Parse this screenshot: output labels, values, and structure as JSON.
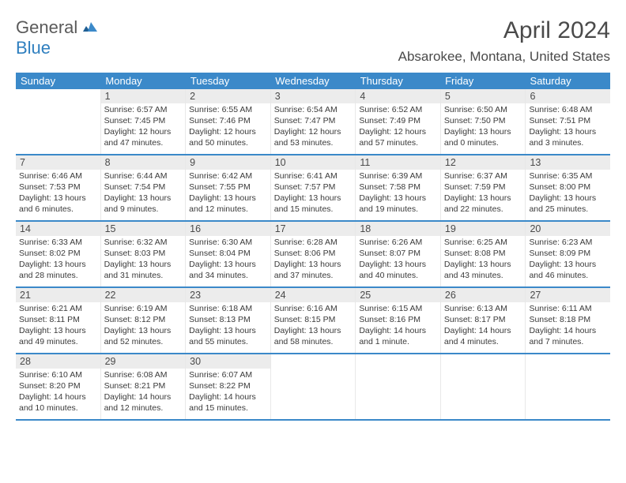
{
  "logo": {
    "textGeneral": "General",
    "textBlue": "Blue"
  },
  "title": "April 2024",
  "location": "Absarokee, Montana, United States",
  "colors": {
    "headerBg": "#3b89c9",
    "headerText": "#ffffff",
    "daynumBg": "#ececec",
    "weekBorder": "#3b89c9",
    "bodyText": "#3a3a3a"
  },
  "dayNames": [
    "Sunday",
    "Monday",
    "Tuesday",
    "Wednesday",
    "Thursday",
    "Friday",
    "Saturday"
  ],
  "weeks": [
    [
      {
        "n": "",
        "sr": "",
        "ss": "",
        "dl": ""
      },
      {
        "n": "1",
        "sr": "Sunrise: 6:57 AM",
        "ss": "Sunset: 7:45 PM",
        "dl": "Daylight: 12 hours and 47 minutes."
      },
      {
        "n": "2",
        "sr": "Sunrise: 6:55 AM",
        "ss": "Sunset: 7:46 PM",
        "dl": "Daylight: 12 hours and 50 minutes."
      },
      {
        "n": "3",
        "sr": "Sunrise: 6:54 AM",
        "ss": "Sunset: 7:47 PM",
        "dl": "Daylight: 12 hours and 53 minutes."
      },
      {
        "n": "4",
        "sr": "Sunrise: 6:52 AM",
        "ss": "Sunset: 7:49 PM",
        "dl": "Daylight: 12 hours and 57 minutes."
      },
      {
        "n": "5",
        "sr": "Sunrise: 6:50 AM",
        "ss": "Sunset: 7:50 PM",
        "dl": "Daylight: 13 hours and 0 minutes."
      },
      {
        "n": "6",
        "sr": "Sunrise: 6:48 AM",
        "ss": "Sunset: 7:51 PM",
        "dl": "Daylight: 13 hours and 3 minutes."
      }
    ],
    [
      {
        "n": "7",
        "sr": "Sunrise: 6:46 AM",
        "ss": "Sunset: 7:53 PM",
        "dl": "Daylight: 13 hours and 6 minutes."
      },
      {
        "n": "8",
        "sr": "Sunrise: 6:44 AM",
        "ss": "Sunset: 7:54 PM",
        "dl": "Daylight: 13 hours and 9 minutes."
      },
      {
        "n": "9",
        "sr": "Sunrise: 6:42 AM",
        "ss": "Sunset: 7:55 PM",
        "dl": "Daylight: 13 hours and 12 minutes."
      },
      {
        "n": "10",
        "sr": "Sunrise: 6:41 AM",
        "ss": "Sunset: 7:57 PM",
        "dl": "Daylight: 13 hours and 15 minutes."
      },
      {
        "n": "11",
        "sr": "Sunrise: 6:39 AM",
        "ss": "Sunset: 7:58 PM",
        "dl": "Daylight: 13 hours and 19 minutes."
      },
      {
        "n": "12",
        "sr": "Sunrise: 6:37 AM",
        "ss": "Sunset: 7:59 PM",
        "dl": "Daylight: 13 hours and 22 minutes."
      },
      {
        "n": "13",
        "sr": "Sunrise: 6:35 AM",
        "ss": "Sunset: 8:00 PM",
        "dl": "Daylight: 13 hours and 25 minutes."
      }
    ],
    [
      {
        "n": "14",
        "sr": "Sunrise: 6:33 AM",
        "ss": "Sunset: 8:02 PM",
        "dl": "Daylight: 13 hours and 28 minutes."
      },
      {
        "n": "15",
        "sr": "Sunrise: 6:32 AM",
        "ss": "Sunset: 8:03 PM",
        "dl": "Daylight: 13 hours and 31 minutes."
      },
      {
        "n": "16",
        "sr": "Sunrise: 6:30 AM",
        "ss": "Sunset: 8:04 PM",
        "dl": "Daylight: 13 hours and 34 minutes."
      },
      {
        "n": "17",
        "sr": "Sunrise: 6:28 AM",
        "ss": "Sunset: 8:06 PM",
        "dl": "Daylight: 13 hours and 37 minutes."
      },
      {
        "n": "18",
        "sr": "Sunrise: 6:26 AM",
        "ss": "Sunset: 8:07 PM",
        "dl": "Daylight: 13 hours and 40 minutes."
      },
      {
        "n": "19",
        "sr": "Sunrise: 6:25 AM",
        "ss": "Sunset: 8:08 PM",
        "dl": "Daylight: 13 hours and 43 minutes."
      },
      {
        "n": "20",
        "sr": "Sunrise: 6:23 AM",
        "ss": "Sunset: 8:09 PM",
        "dl": "Daylight: 13 hours and 46 minutes."
      }
    ],
    [
      {
        "n": "21",
        "sr": "Sunrise: 6:21 AM",
        "ss": "Sunset: 8:11 PM",
        "dl": "Daylight: 13 hours and 49 minutes."
      },
      {
        "n": "22",
        "sr": "Sunrise: 6:19 AM",
        "ss": "Sunset: 8:12 PM",
        "dl": "Daylight: 13 hours and 52 minutes."
      },
      {
        "n": "23",
        "sr": "Sunrise: 6:18 AM",
        "ss": "Sunset: 8:13 PM",
        "dl": "Daylight: 13 hours and 55 minutes."
      },
      {
        "n": "24",
        "sr": "Sunrise: 6:16 AM",
        "ss": "Sunset: 8:15 PM",
        "dl": "Daylight: 13 hours and 58 minutes."
      },
      {
        "n": "25",
        "sr": "Sunrise: 6:15 AM",
        "ss": "Sunset: 8:16 PM",
        "dl": "Daylight: 14 hours and 1 minute."
      },
      {
        "n": "26",
        "sr": "Sunrise: 6:13 AM",
        "ss": "Sunset: 8:17 PM",
        "dl": "Daylight: 14 hours and 4 minutes."
      },
      {
        "n": "27",
        "sr": "Sunrise: 6:11 AM",
        "ss": "Sunset: 8:18 PM",
        "dl": "Daylight: 14 hours and 7 minutes."
      }
    ],
    [
      {
        "n": "28",
        "sr": "Sunrise: 6:10 AM",
        "ss": "Sunset: 8:20 PM",
        "dl": "Daylight: 14 hours and 10 minutes."
      },
      {
        "n": "29",
        "sr": "Sunrise: 6:08 AM",
        "ss": "Sunset: 8:21 PM",
        "dl": "Daylight: 14 hours and 12 minutes."
      },
      {
        "n": "30",
        "sr": "Sunrise: 6:07 AM",
        "ss": "Sunset: 8:22 PM",
        "dl": "Daylight: 14 hours and 15 minutes."
      },
      {
        "n": "",
        "sr": "",
        "ss": "",
        "dl": ""
      },
      {
        "n": "",
        "sr": "",
        "ss": "",
        "dl": ""
      },
      {
        "n": "",
        "sr": "",
        "ss": "",
        "dl": ""
      },
      {
        "n": "",
        "sr": "",
        "ss": "",
        "dl": ""
      }
    ]
  ]
}
